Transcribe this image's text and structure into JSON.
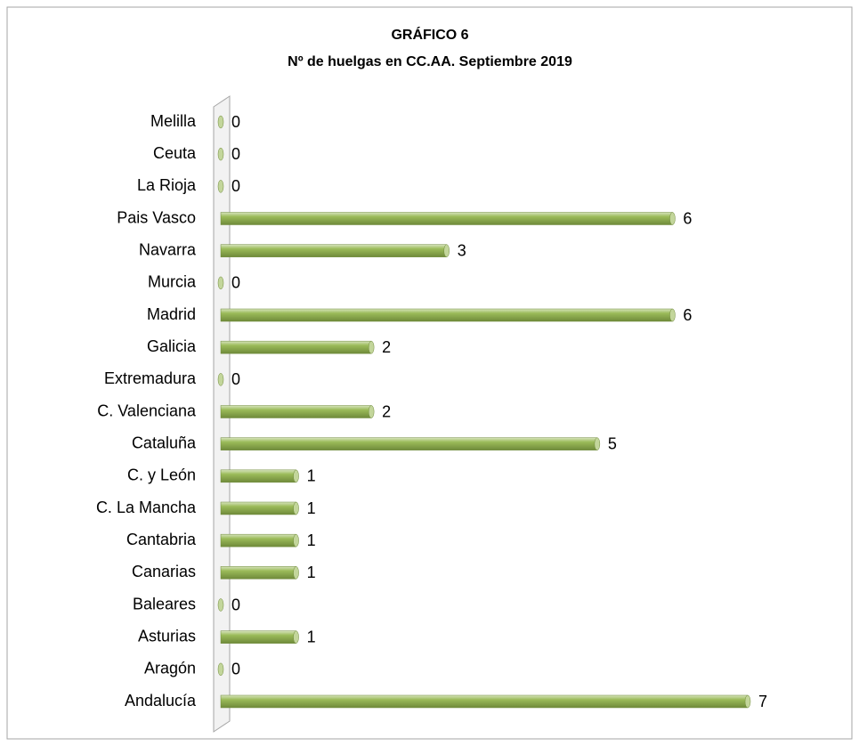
{
  "chart_data": {
    "type": "bar",
    "orientation": "horizontal",
    "title": "GRÁFICO 6",
    "subtitle": "Nº de huelgas en CC.AA. Septiembre 2019",
    "categories": [
      "Melilla",
      "Ceuta",
      "La Rioja",
      "Pais Vasco",
      "Navarra",
      "Murcia",
      "Madrid",
      "Galicia",
      "Extremadura",
      "C. Valenciana",
      "Cataluña",
      "C. y León",
      "C. La Mancha",
      "Cantabria",
      "Canarias",
      "Baleares",
      "Asturias",
      "Aragón",
      "Andalucía"
    ],
    "values": [
      0,
      0,
      0,
      6,
      3,
      0,
      6,
      2,
      0,
      2,
      5,
      1,
      1,
      1,
      1,
      0,
      1,
      0,
      7
    ],
    "color": "#9bbb59"
  }
}
